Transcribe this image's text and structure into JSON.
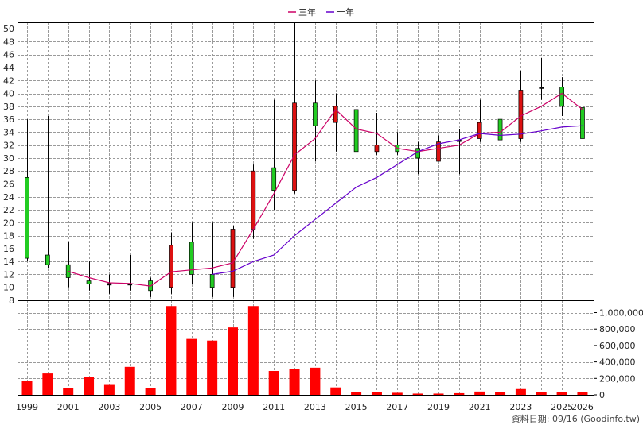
{
  "chart_data": {
    "type": "candlestick",
    "legend": [
      {
        "name": "三年",
        "color": "#cc0066"
      },
      {
        "name": "十年",
        "color": "#6600cc"
      }
    ],
    "years": [
      "1999",
      "2000",
      "2001",
      "2002",
      "2003",
      "2004",
      "2005",
      "2006",
      "2007",
      "2008",
      "2009",
      "2010",
      "2011",
      "2012",
      "2013",
      "2014",
      "2015",
      "2016",
      "2017",
      "2018",
      "2019",
      "2020",
      "2021",
      "2022",
      "2023",
      "2024",
      "2025",
      "2026"
    ],
    "x_tick_labels": [
      "1999",
      "2001",
      "2003",
      "2005",
      "2007",
      "2009",
      "2011",
      "2013",
      "2015",
      "2017",
      "2019",
      "2021",
      "2023",
      "2025",
      "2026"
    ],
    "price_axis": {
      "ylim": [
        8,
        51
      ],
      "ticks": [
        8,
        10,
        12,
        14,
        16,
        18,
        20,
        22,
        24,
        26,
        28,
        30,
        32,
        34,
        36,
        38,
        40,
        42,
        44,
        46,
        48,
        50
      ]
    },
    "volume_axis": {
      "ylim": [
        0,
        1150000
      ],
      "ticks": [
        0,
        200000,
        400000,
        600000,
        800000,
        1000000
      ],
      "tick_labels": [
        "0",
        "200,000",
        "400,000",
        "600,000",
        "800,000",
        "1,000,000"
      ]
    },
    "candles": [
      {
        "year": "1999",
        "open": 14.5,
        "close": 27.0,
        "high": 36.0,
        "low": 14.0
      },
      {
        "year": "2000",
        "open": 13.5,
        "close": 15.0,
        "high": 36.5,
        "low": 13.0
      },
      {
        "year": "2001",
        "open": 11.5,
        "close": 13.5,
        "high": 17.0,
        "low": 10.0
      },
      {
        "year": "2002",
        "open": 10.5,
        "close": 11.0,
        "high": 14.0,
        "low": 9.5
      },
      {
        "year": "2003",
        "open": 10.6,
        "close": 10.6,
        "high": 12.0,
        "low": 9.0
      },
      {
        "year": "2004",
        "open": 10.6,
        "close": 10.6,
        "high": 15.0,
        "low": 9.5
      },
      {
        "year": "2005",
        "open": 9.5,
        "close": 11.0,
        "high": 11.5,
        "low": 8.5
      },
      {
        "year": "2006",
        "open": 16.5,
        "close": 10.0,
        "high": 18.5,
        "low": 9.0
      },
      {
        "year": "2007",
        "open": 12.0,
        "close": 17.0,
        "high": 20.0,
        "low": 10.5
      },
      {
        "year": "2008",
        "open": 10.0,
        "close": 12.0,
        "high": 20.0,
        "low": 8.5
      },
      {
        "year": "2009",
        "open": 19.0,
        "close": 10.0,
        "high": 19.5,
        "low": 8.5
      },
      {
        "year": "2010",
        "open": 28.0,
        "close": 19.0,
        "high": 29.0,
        "low": 17.5
      },
      {
        "year": "2011",
        "open": 25.0,
        "close": 28.5,
        "high": 39.0,
        "low": 22.0
      },
      {
        "year": "2012",
        "open": 38.5,
        "close": 25.0,
        "high": 51.0,
        "low": 24.5
      },
      {
        "year": "2013",
        "open": 35.0,
        "close": 38.5,
        "high": 42.0,
        "low": 29.5
      },
      {
        "year": "2014",
        "open": 38.0,
        "close": 35.5,
        "high": 40.0,
        "low": 31.0
      },
      {
        "year": "2015",
        "open": 31.0,
        "close": 37.5,
        "high": 39.5,
        "low": 30.5
      },
      {
        "year": "2016",
        "open": 32.0,
        "close": 31.0,
        "high": 37.0,
        "low": 30.5
      },
      {
        "year": "2017",
        "open": 31.0,
        "close": 32.0,
        "high": 34.0,
        "low": 30.5
      },
      {
        "year": "2018",
        "open": 30.0,
        "close": 31.5,
        "high": 32.5,
        "low": 27.5
      },
      {
        "year": "2019",
        "open": 32.5,
        "close": 29.5,
        "high": 33.5,
        "low": 29.5
      },
      {
        "year": "2020",
        "open": 32.8,
        "close": 32.8,
        "high": 34.5,
        "low": 27.5
      },
      {
        "year": "2021",
        "open": 35.5,
        "close": 33.0,
        "high": 39.0,
        "low": 32.5
      },
      {
        "year": "2022",
        "open": 32.8,
        "close": 36.0,
        "high": 37.5,
        "low": 32.0
      },
      {
        "year": "2023",
        "open": 40.5,
        "close": 33.0,
        "high": 43.5,
        "low": 32.5
      },
      {
        "year": "2024",
        "open": 41.0,
        "close": 41.0,
        "high": 45.5,
        "low": 39.0
      },
      {
        "year": "2025",
        "open": 38.0,
        "close": 41.0,
        "high": 42.5,
        "low": 36.5
      },
      {
        "year": "2026",
        "open": 33.0,
        "close": 37.8,
        "high": 38.0,
        "low": 32.8
      }
    ],
    "series": [
      {
        "name": "三年",
        "color": "#cc0066",
        "values": [
          null,
          null,
          12.5,
          11.5,
          10.7,
          10.6,
          10.2,
          12.4,
          12.7,
          13.0,
          13.8,
          19.0,
          24.5,
          30.5,
          33.0,
          37.5,
          34.5,
          33.8,
          31.5,
          31.0,
          31.5,
          32.0,
          33.8,
          34.0,
          36.5,
          38.0,
          40.0,
          37.5
        ]
      },
      {
        "name": "十年",
        "color": "#6600cc",
        "values": [
          null,
          null,
          null,
          null,
          null,
          null,
          null,
          null,
          null,
          12.0,
          12.5,
          14.0,
          15.0,
          18.0,
          20.5,
          23.0,
          25.5,
          27.0,
          29.0,
          31.0,
          32.2,
          32.8,
          33.8,
          33.5,
          33.7,
          34.2,
          34.8,
          35.0
        ]
      }
    ],
    "volume": [
      170000,
      260000,
      85000,
      220000,
      130000,
      340000,
      80000,
      1080000,
      680000,
      660000,
      820000,
      1080000,
      290000,
      310000,
      330000,
      90000,
      35000,
      30000,
      25000,
      15000,
      15000,
      20000,
      40000,
      35000,
      70000,
      35000,
      30000,
      30000
    ],
    "source_note": "資料日期: 09/16 (Goodinfo.tw)"
  }
}
